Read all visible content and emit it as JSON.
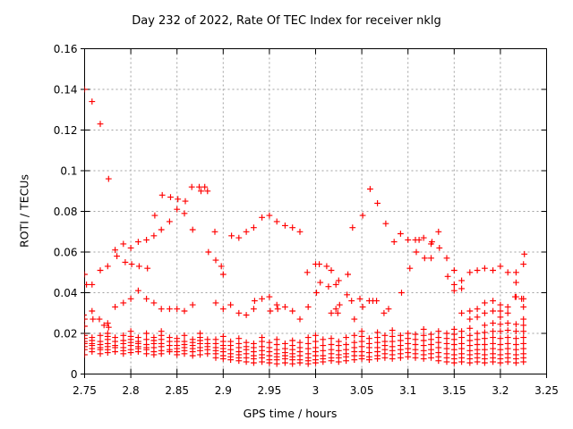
{
  "chart_data": {
    "type": "scatter",
    "title": "Day 232 of 2022, Rate Of TEC Index for receiver nklg",
    "xlabel": "GPS time / hours",
    "ylabel": "ROTI / TECUs",
    "xlim": [
      2.75,
      3.25
    ],
    "ylim": [
      0,
      0.16
    ],
    "xticks": [
      2.75,
      2.8,
      2.85,
      2.9,
      2.95,
      3,
      3.05,
      3.1,
      3.15,
      3.2,
      3.25
    ],
    "xtick_labels": [
      "2.75",
      "2.8",
      "2.85",
      "2.9",
      "2.95",
      "3",
      "3.05",
      "3.1",
      "3.15",
      "3.2",
      "3.25"
    ],
    "yticks": [
      0,
      0.02,
      0.04,
      0.06,
      0.08,
      0.1,
      0.12,
      0.14,
      0.16
    ],
    "ytick_labels": [
      "0",
      "0.02",
      "0.04",
      "0.06",
      "0.08",
      "0.1",
      "0.12",
      "0.14",
      "0.16"
    ],
    "grid": true,
    "legend": "none",
    "marker": "plus",
    "marker_color": "#ff0000",
    "grid_color": "#a0a0a0",
    "frame_color": "#000000",
    "points": [
      [
        2.75,
        0.14
      ],
      [
        2.758,
        0.134
      ],
      [
        2.767,
        0.123
      ],
      [
        2.776,
        0.096
      ],
      [
        2.75,
        0.049
      ],
      [
        2.752,
        0.044
      ],
      [
        2.758,
        0.044
      ],
      [
        2.767,
        0.051
      ],
      [
        2.775,
        0.053
      ],
      [
        2.783,
        0.061
      ],
      [
        2.785,
        0.058
      ],
      [
        2.792,
        0.064
      ],
      [
        2.794,
        0.055
      ],
      [
        2.8,
        0.062
      ],
      [
        2.801,
        0.054
      ],
      [
        2.808,
        0.065
      ],
      [
        2.809,
        0.053
      ],
      [
        2.817,
        0.066
      ],
      [
        2.818,
        0.052
      ],
      [
        2.825,
        0.068
      ],
      [
        2.826,
        0.078
      ],
      [
        2.833,
        0.071
      ],
      [
        2.834,
        0.088
      ],
      [
        2.842,
        0.075
      ],
      [
        2.843,
        0.087
      ],
      [
        2.85,
        0.081
      ],
      [
        2.851,
        0.086
      ],
      [
        2.858,
        0.079
      ],
      [
        2.859,
        0.085
      ],
      [
        2.866,
        0.092
      ],
      [
        2.867,
        0.071
      ],
      [
        2.874,
        0.092
      ],
      [
        2.876,
        0.09
      ],
      [
        2.88,
        0.092
      ],
      [
        2.883,
        0.09
      ],
      [
        2.884,
        0.06
      ],
      [
        2.891,
        0.07
      ],
      [
        2.892,
        0.056
      ],
      [
        2.898,
        0.053
      ],
      [
        2.9,
        0.049
      ],
      [
        2.909,
        0.068
      ],
      [
        2.917,
        0.067
      ],
      [
        2.925,
        0.07
      ],
      [
        2.933,
        0.072
      ],
      [
        2.942,
        0.077
      ],
      [
        2.95,
        0.078
      ],
      [
        2.958,
        0.075
      ],
      [
        2.967,
        0.073
      ],
      [
        2.975,
        0.072
      ],
      [
        2.983,
        0.07
      ],
      [
        2.991,
        0.05
      ],
      [
        3.0,
        0.054
      ],
      [
        3.001,
        0.04
      ],
      [
        2.749,
        0.029
      ],
      [
        2.75,
        0.027
      ],
      [
        2.758,
        0.031
      ],
      [
        2.759,
        0.027
      ],
      [
        2.766,
        0.027
      ],
      [
        2.771,
        0.024
      ],
      [
        2.775,
        0.025
      ],
      [
        2.776,
        0.023
      ],
      [
        2.783,
        0.033
      ],
      [
        2.792,
        0.035
      ],
      [
        2.8,
        0.037
      ],
      [
        2.808,
        0.041
      ],
      [
        2.817,
        0.037
      ],
      [
        2.825,
        0.035
      ],
      [
        2.833,
        0.032
      ],
      [
        2.842,
        0.032
      ],
      [
        2.85,
        0.032
      ],
      [
        2.858,
        0.031
      ],
      [
        2.867,
        0.034
      ],
      [
        2.892,
        0.035
      ],
      [
        2.9,
        0.032
      ],
      [
        2.908,
        0.034
      ],
      [
        2.917,
        0.03
      ],
      [
        2.925,
        0.029
      ],
      [
        2.933,
        0.032
      ],
      [
        2.934,
        0.036
      ],
      [
        2.942,
        0.037
      ],
      [
        2.95,
        0.038
      ],
      [
        2.951,
        0.031
      ],
      [
        2.958,
        0.034
      ],
      [
        2.959,
        0.032
      ],
      [
        2.967,
        0.033
      ],
      [
        2.975,
        0.031
      ],
      [
        2.983,
        0.027
      ],
      [
        2.992,
        0.033
      ],
      [
        3.004,
        0.054
      ],
      [
        3.012,
        0.053
      ],
      [
        3.017,
        0.051
      ],
      [
        3.005,
        0.045
      ],
      [
        3.014,
        0.043
      ],
      [
        3.022,
        0.044
      ],
      [
        3.025,
        0.046
      ],
      [
        3.035,
        0.049
      ],
      [
        3.034,
        0.039
      ],
      [
        3.039,
        0.036
      ],
      [
        3.048,
        0.037
      ],
      [
        3.051,
        0.033
      ],
      [
        3.058,
        0.036
      ],
      [
        3.062,
        0.036
      ],
      [
        3.066,
        0.036
      ],
      [
        3.022,
        0.032
      ],
      [
        3.026,
        0.034
      ],
      [
        3.017,
        0.03
      ],
      [
        3.024,
        0.03
      ],
      [
        3.042,
        0.027
      ],
      [
        3.074,
        0.03
      ],
      [
        3.079,
        0.032
      ],
      [
        3.093,
        0.04
      ],
      [
        3.04,
        0.072
      ],
      [
        3.051,
        0.078
      ],
      [
        3.059,
        0.091
      ],
      [
        3.067,
        0.084
      ],
      [
        3.076,
        0.074
      ],
      [
        3.085,
        0.065
      ],
      [
        3.092,
        0.069
      ],
      [
        3.1,
        0.066
      ],
      [
        3.108,
        0.066
      ],
      [
        3.112,
        0.066
      ],
      [
        3.117,
        0.067
      ],
      [
        3.125,
        0.064
      ],
      [
        3.133,
        0.07
      ],
      [
        3.126,
        0.065
      ],
      [
        3.134,
        0.062
      ],
      [
        3.142,
        0.057
      ],
      [
        3.109,
        0.06
      ],
      [
        3.118,
        0.057
      ],
      [
        3.125,
        0.057
      ],
      [
        3.102,
        0.052
      ],
      [
        3.143,
        0.048
      ],
      [
        3.15,
        0.051
      ],
      [
        3.158,
        0.046
      ],
      [
        3.15,
        0.044
      ],
      [
        3.158,
        0.042
      ],
      [
        3.15,
        0.041
      ],
      [
        3.167,
        0.05
      ],
      [
        3.175,
        0.051
      ],
      [
        3.183,
        0.052
      ],
      [
        3.192,
        0.051
      ],
      [
        3.2,
        0.053
      ],
      [
        3.208,
        0.05
      ],
      [
        3.217,
        0.05
      ],
      [
        3.225,
        0.054
      ],
      [
        3.226,
        0.059
      ],
      [
        3.183,
        0.035
      ],
      [
        3.192,
        0.036
      ],
      [
        3.2,
        0.034
      ],
      [
        3.208,
        0.033
      ],
      [
        3.217,
        0.045
      ],
      [
        3.217,
        0.038
      ],
      [
        3.225,
        0.037
      ],
      [
        3.216,
        0.038
      ],
      [
        3.223,
        0.037
      ],
      [
        3.158,
        0.03
      ],
      [
        3.167,
        0.031
      ],
      [
        3.175,
        0.032
      ],
      [
        3.167,
        0.027
      ],
      [
        3.175,
        0.028
      ],
      [
        3.183,
        0.03
      ],
      [
        3.192,
        0.031
      ],
      [
        3.2,
        0.031
      ],
      [
        3.208,
        0.03
      ],
      [
        3.225,
        0.033
      ]
    ],
    "low_band": [
      [
        2.75,
        [
          0.0095,
          0.012,
          0.0135,
          0.015,
          0.016,
          0.0175,
          0.019,
          0.0235
        ]
      ],
      [
        2.758,
        [
          0.011,
          0.0125,
          0.014,
          0.015,
          0.0165,
          0.018
        ]
      ],
      [
        2.767,
        [
          0.01,
          0.012,
          0.013,
          0.0145,
          0.016,
          0.019
        ]
      ],
      [
        2.775,
        [
          0.0105,
          0.012,
          0.0135,
          0.015,
          0.017,
          0.0185,
          0.02
        ]
      ],
      [
        2.783,
        [
          0.011,
          0.013,
          0.014,
          0.016,
          0.018
        ]
      ],
      [
        2.792,
        [
          0.01,
          0.0115,
          0.013,
          0.015,
          0.0165,
          0.019
        ]
      ],
      [
        2.8,
        [
          0.0105,
          0.012,
          0.014,
          0.0155,
          0.017,
          0.0185,
          0.021
        ]
      ],
      [
        2.808,
        [
          0.011,
          0.0125,
          0.0135,
          0.015,
          0.016,
          0.018
        ]
      ],
      [
        2.817,
        [
          0.01,
          0.012,
          0.013,
          0.0145,
          0.017,
          0.02
        ]
      ],
      [
        2.825,
        [
          0.0095,
          0.011,
          0.013,
          0.015,
          0.0165,
          0.018
        ]
      ],
      [
        2.833,
        [
          0.01,
          0.0115,
          0.0135,
          0.015,
          0.017,
          0.019,
          0.021
        ]
      ],
      [
        2.842,
        [
          0.011,
          0.012,
          0.014,
          0.016,
          0.018
        ]
      ],
      [
        2.85,
        [
          0.0095,
          0.011,
          0.0125,
          0.014,
          0.016,
          0.0175
        ]
      ],
      [
        2.858,
        [
          0.01,
          0.0115,
          0.013,
          0.0145,
          0.016,
          0.019
        ]
      ],
      [
        2.867,
        [
          0.009,
          0.011,
          0.0125,
          0.014,
          0.0155,
          0.017
        ]
      ],
      [
        2.875,
        [
          0.0095,
          0.0115,
          0.013,
          0.015,
          0.0165,
          0.018,
          0.02
        ]
      ],
      [
        2.883,
        [
          0.01,
          0.012,
          0.0135,
          0.015,
          0.017
        ]
      ],
      [
        2.892,
        [
          0.008,
          0.01,
          0.0115,
          0.013,
          0.015,
          0.017
        ]
      ],
      [
        2.9,
        [
          0.0075,
          0.009,
          0.011,
          0.0125,
          0.014,
          0.016,
          0.0185
        ]
      ],
      [
        2.908,
        [
          0.007,
          0.0085,
          0.01,
          0.012,
          0.014,
          0.016
        ]
      ],
      [
        2.917,
        [
          0.0065,
          0.008,
          0.0095,
          0.011,
          0.013,
          0.015,
          0.0175
        ]
      ],
      [
        2.925,
        [
          0.006,
          0.008,
          0.01,
          0.012,
          0.0135,
          0.0155
        ]
      ],
      [
        2.933,
        [
          0.0055,
          0.0075,
          0.009,
          0.011,
          0.013,
          0.015
        ]
      ],
      [
        2.942,
        [
          0.006,
          0.008,
          0.0095,
          0.0115,
          0.0135,
          0.016,
          0.018
        ]
      ],
      [
        2.95,
        [
          0.0055,
          0.007,
          0.009,
          0.011,
          0.013,
          0.0155
        ]
      ],
      [
        2.958,
        [
          0.005,
          0.007,
          0.0085,
          0.01,
          0.012,
          0.0145,
          0.017
        ]
      ],
      [
        2.967,
        [
          0.0055,
          0.0075,
          0.009,
          0.0105,
          0.0125,
          0.015
        ]
      ],
      [
        2.975,
        [
          0.005,
          0.007,
          0.0085,
          0.01,
          0.012,
          0.014,
          0.0165
        ]
      ],
      [
        2.983,
        [
          0.0055,
          0.007,
          0.009,
          0.011,
          0.013,
          0.0155
        ]
      ],
      [
        2.992,
        [
          0.005,
          0.0065,
          0.008,
          0.01,
          0.0125,
          0.015,
          0.018
        ]
      ],
      [
        3.0,
        [
          0.0055,
          0.007,
          0.009,
          0.011,
          0.013,
          0.016,
          0.019
        ]
      ],
      [
        3.008,
        [
          0.006,
          0.0075,
          0.009,
          0.0115,
          0.014,
          0.017
        ]
      ],
      [
        3.017,
        [
          0.0065,
          0.008,
          0.01,
          0.012,
          0.0145,
          0.0175
        ]
      ],
      [
        3.025,
        [
          0.006,
          0.008,
          0.0095,
          0.0115,
          0.014,
          0.016
        ]
      ],
      [
        3.033,
        [
          0.0065,
          0.0085,
          0.01,
          0.012,
          0.0145,
          0.018
        ]
      ],
      [
        3.042,
        [
          0.007,
          0.009,
          0.011,
          0.013,
          0.0155,
          0.019
        ]
      ],
      [
        3.05,
        [
          0.0075,
          0.009,
          0.011,
          0.0135,
          0.016,
          0.0185,
          0.021
        ]
      ],
      [
        3.058,
        [
          0.007,
          0.0085,
          0.0105,
          0.013,
          0.015,
          0.0175
        ]
      ],
      [
        3.067,
        [
          0.0075,
          0.009,
          0.011,
          0.013,
          0.0155,
          0.018,
          0.0205
        ]
      ],
      [
        3.075,
        [
          0.008,
          0.01,
          0.012,
          0.014,
          0.016,
          0.019
        ]
      ],
      [
        3.083,
        [
          0.0075,
          0.0095,
          0.0115,
          0.0135,
          0.016,
          0.0185,
          0.0215
        ]
      ],
      [
        3.092,
        [
          0.008,
          0.01,
          0.012,
          0.014,
          0.0165,
          0.019
        ]
      ],
      [
        3.1,
        [
          0.0085,
          0.0105,
          0.0125,
          0.015,
          0.0175,
          0.02
        ]
      ],
      [
        3.108,
        [
          0.008,
          0.01,
          0.012,
          0.0145,
          0.017,
          0.0195
        ]
      ],
      [
        3.117,
        [
          0.0075,
          0.0095,
          0.0115,
          0.014,
          0.0165,
          0.019,
          0.022
        ]
      ],
      [
        3.125,
        [
          0.008,
          0.01,
          0.012,
          0.0145,
          0.017,
          0.0195
        ]
      ],
      [
        3.133,
        [
          0.0065,
          0.0085,
          0.0105,
          0.013,
          0.0155,
          0.018,
          0.021
        ]
      ],
      [
        3.142,
        [
          0.006,
          0.008,
          0.01,
          0.0125,
          0.015,
          0.0175,
          0.02
        ]
      ],
      [
        3.15,
        [
          0.0055,
          0.0075,
          0.0095,
          0.012,
          0.0145,
          0.017,
          0.0195,
          0.022
        ]
      ],
      [
        3.158,
        [
          0.006,
          0.008,
          0.01,
          0.0125,
          0.015,
          0.018,
          0.021
        ]
      ],
      [
        3.167,
        [
          0.0055,
          0.0075,
          0.0095,
          0.0115,
          0.014,
          0.0165,
          0.019,
          0.0225
        ]
      ],
      [
        3.175,
        [
          0.006,
          0.008,
          0.01,
          0.012,
          0.0145,
          0.017,
          0.02
        ]
      ],
      [
        3.183,
        [
          0.0055,
          0.0075,
          0.0095,
          0.012,
          0.0145,
          0.0175,
          0.0205,
          0.024
        ]
      ],
      [
        3.192,
        [
          0.006,
          0.008,
          0.01,
          0.0125,
          0.015,
          0.018,
          0.021,
          0.025
        ]
      ],
      [
        3.2,
        [
          0.0055,
          0.0075,
          0.0095,
          0.012,
          0.0145,
          0.0175,
          0.021,
          0.0245,
          0.028
        ]
      ],
      [
        3.208,
        [
          0.006,
          0.008,
          0.01,
          0.0125,
          0.015,
          0.018,
          0.0215,
          0.025
        ]
      ],
      [
        3.217,
        [
          0.0055,
          0.0075,
          0.0095,
          0.012,
          0.0145,
          0.0175,
          0.021,
          0.0245
        ]
      ],
      [
        3.225,
        [
          0.006,
          0.008,
          0.01,
          0.0125,
          0.015,
          0.018,
          0.021,
          0.024,
          0.027
        ]
      ]
    ]
  }
}
